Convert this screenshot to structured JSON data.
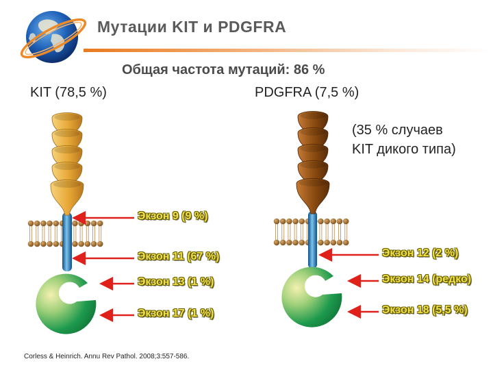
{
  "slide": {
    "title": "Мутации KIT и PDGFRA",
    "subtitle": "Общая частота мутаций:  86 %",
    "citation": "Corless & Heinrich. Annu Rev Pathol. 2008;3:557-586."
  },
  "kit": {
    "label": "KIT (78,5 %)",
    "exons": [
      {
        "label": "Экзон 9 (9 %)"
      },
      {
        "label": "Экзон 11 (67 %)"
      },
      {
        "label": "Экзон 13 (1 %)"
      },
      {
        "label": "Экзон 17 (1 %)"
      }
    ]
  },
  "pdgfra": {
    "label": "PDGFRA (7,5 %)",
    "wild_type_line1": "(35 % случаев",
    "wild_type_line2": "KIT дикого типа)",
    "exons": [
      {
        "label": "Экзон 12 (2 %)"
      },
      {
        "label": "Экзон 14 (редко)"
      },
      {
        "label": "Экзон 18 (5,5 %)"
      }
    ]
  },
  "colors": {
    "arrow": "#e0201a",
    "kit_domain": "#e7a736",
    "pdgfra_domain": "#8a4a10",
    "membrane_head": "#9a6a2a",
    "transmembrane": "#2a7fc0",
    "kinase_green": "#1e9a4e",
    "title_rule": "#e97a1f",
    "exon_text": "#f0e04a"
  }
}
